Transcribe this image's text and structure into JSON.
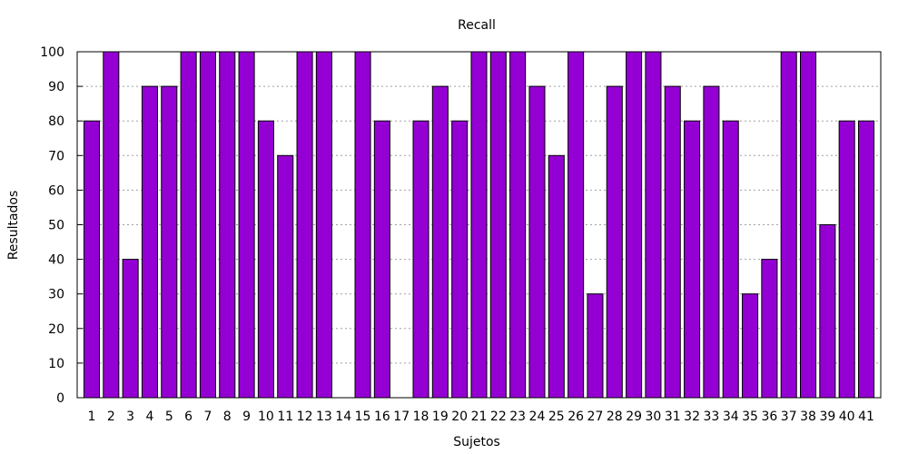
{
  "chart_data": {
    "type": "bar",
    "title": "Recall",
    "xlabel": "Sujetos",
    "ylabel": "Resultados",
    "categories": [
      "1",
      "2",
      "3",
      "4",
      "5",
      "6",
      "7",
      "8",
      "9",
      "10",
      "11",
      "12",
      "13",
      "14",
      "15",
      "16",
      "17",
      "18",
      "19",
      "20",
      "21",
      "22",
      "23",
      "24",
      "25",
      "26",
      "27",
      "28",
      "29",
      "30",
      "31",
      "32",
      "33",
      "34",
      "35",
      "36",
      "37",
      "38",
      "39",
      "40",
      "41"
    ],
    "values": [
      80,
      100,
      40,
      90,
      90,
      100,
      100,
      100,
      100,
      80,
      70,
      100,
      100,
      0,
      100,
      80,
      0,
      80,
      90,
      80,
      100,
      100,
      100,
      90,
      70,
      100,
      30,
      90,
      100,
      100,
      90,
      80,
      90,
      80,
      30,
      40,
      100,
      100,
      50,
      80,
      80
    ],
    "ylim": [
      0,
      100
    ],
    "yticks": [
      0,
      10,
      20,
      30,
      40,
      50,
      60,
      70,
      80,
      90,
      100
    ],
    "grid": true,
    "bar_color": "#9400d3"
  }
}
